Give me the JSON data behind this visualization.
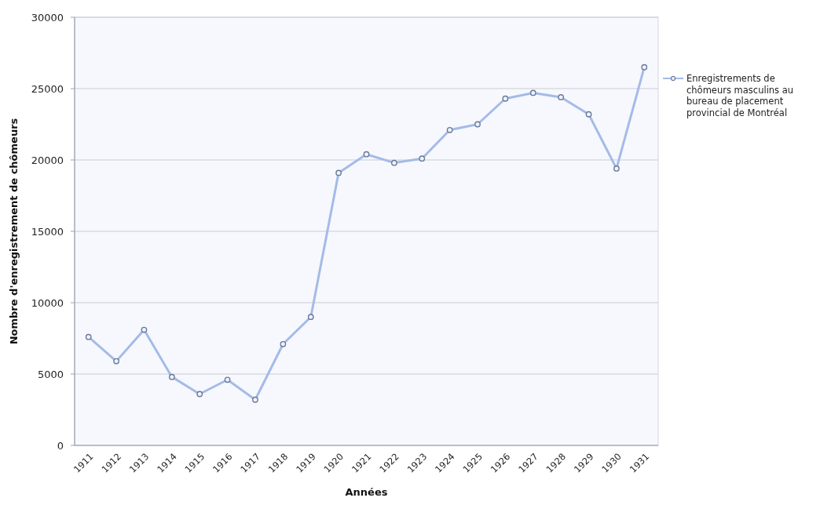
{
  "chart_data": {
    "type": "line",
    "xlabel": "Années",
    "ylabel": "Nombre d'enregistrement de chômeurs",
    "categories": [
      "1911",
      "1912",
      "1913",
      "1914",
      "1915",
      "1916",
      "1917",
      "1918",
      "1919",
      "1920",
      "1921",
      "1922",
      "1923",
      "1924",
      "1925",
      "1926",
      "1927",
      "1928",
      "1929",
      "1930",
      "1931"
    ],
    "series": [
      {
        "name": "Enregistrements de chômeurs masculins au bureau de placement provincial de Montréal",
        "color": "#a4bbe8",
        "values": [
          7600,
          5900,
          8100,
          4800,
          3600,
          4600,
          3200,
          7100,
          9000,
          19100,
          20400,
          19800,
          20100,
          22100,
          22500,
          24300,
          24700,
          24400,
          23200,
          19400,
          26500
        ]
      }
    ],
    "ylim": [
      0,
      30000
    ],
    "yticks": [
      0,
      5000,
      10000,
      15000,
      20000,
      25000,
      30000
    ],
    "grid": "y",
    "legend": "right",
    "marker": "circle",
    "line_style": "solid"
  }
}
